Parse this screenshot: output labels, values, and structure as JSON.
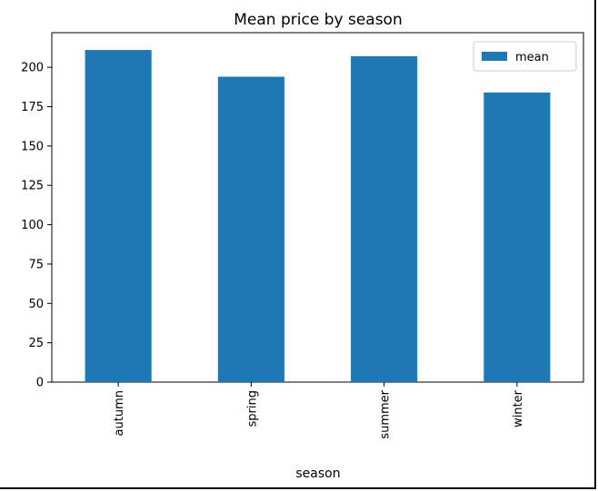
{
  "chart_data": {
    "type": "bar",
    "title": "Mean price by season",
    "xlabel": "season",
    "ylabel": "",
    "categories": [
      "autumn",
      "spring",
      "summer",
      "winter"
    ],
    "series": [
      {
        "name": "mean",
        "values": [
          211,
          194,
          207,
          184
        ],
        "color": "#1f77b4"
      }
    ],
    "ylim": [
      0,
      222
    ],
    "yticks": [
      0,
      25,
      50,
      75,
      100,
      125,
      150,
      175,
      200
    ],
    "ytick_labels": [
      "0",
      "25",
      "50",
      "75",
      "100",
      "125",
      "150",
      "175",
      "200"
    ],
    "legend_position": "top-right",
    "grid": false
  }
}
